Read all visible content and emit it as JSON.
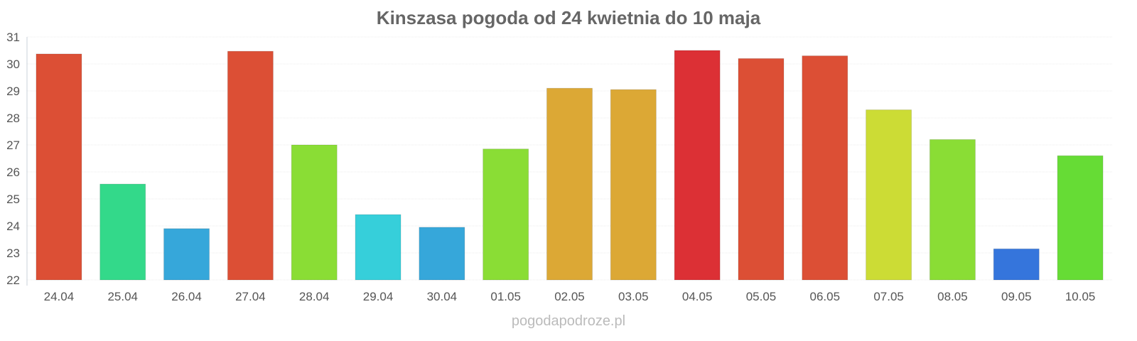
{
  "chart_data": {
    "type": "bar",
    "title": "Kinszasa pogoda od 24 kwietnia do 10 maja",
    "xlabel": "",
    "ylabel": "",
    "ylim": [
      22,
      31
    ],
    "yticks": [
      "22",
      "23",
      "24",
      "25",
      "26",
      "27",
      "28",
      "29",
      "30",
      "31"
    ],
    "grid": true,
    "categories": [
      "24.04",
      "25.04",
      "26.04",
      "27.04",
      "28.04",
      "29.04",
      "30.04",
      "01.05",
      "02.05",
      "03.05",
      "04.05",
      "05.05",
      "06.05",
      "07.05",
      "08.05",
      "09.05",
      "10.05"
    ],
    "values": [
      30.37,
      25.55,
      23.9,
      30.47,
      27.0,
      24.42,
      23.95,
      26.85,
      29.1,
      29.05,
      30.5,
      30.2,
      30.3,
      28.3,
      27.2,
      23.15,
      26.6
    ],
    "colors": [
      "#dc4f35",
      "#33d98a",
      "#36a7da",
      "#dc4f35",
      "#8add35",
      "#36cfda",
      "#36a7da",
      "#8add35",
      "#dca835",
      "#dca835",
      "#dc3035",
      "#dc4f35",
      "#dc4f35",
      "#ccdc35",
      "#8add35",
      "#3575dc",
      "#66dc35"
    ]
  },
  "footer": "pogodapodroze.pl"
}
